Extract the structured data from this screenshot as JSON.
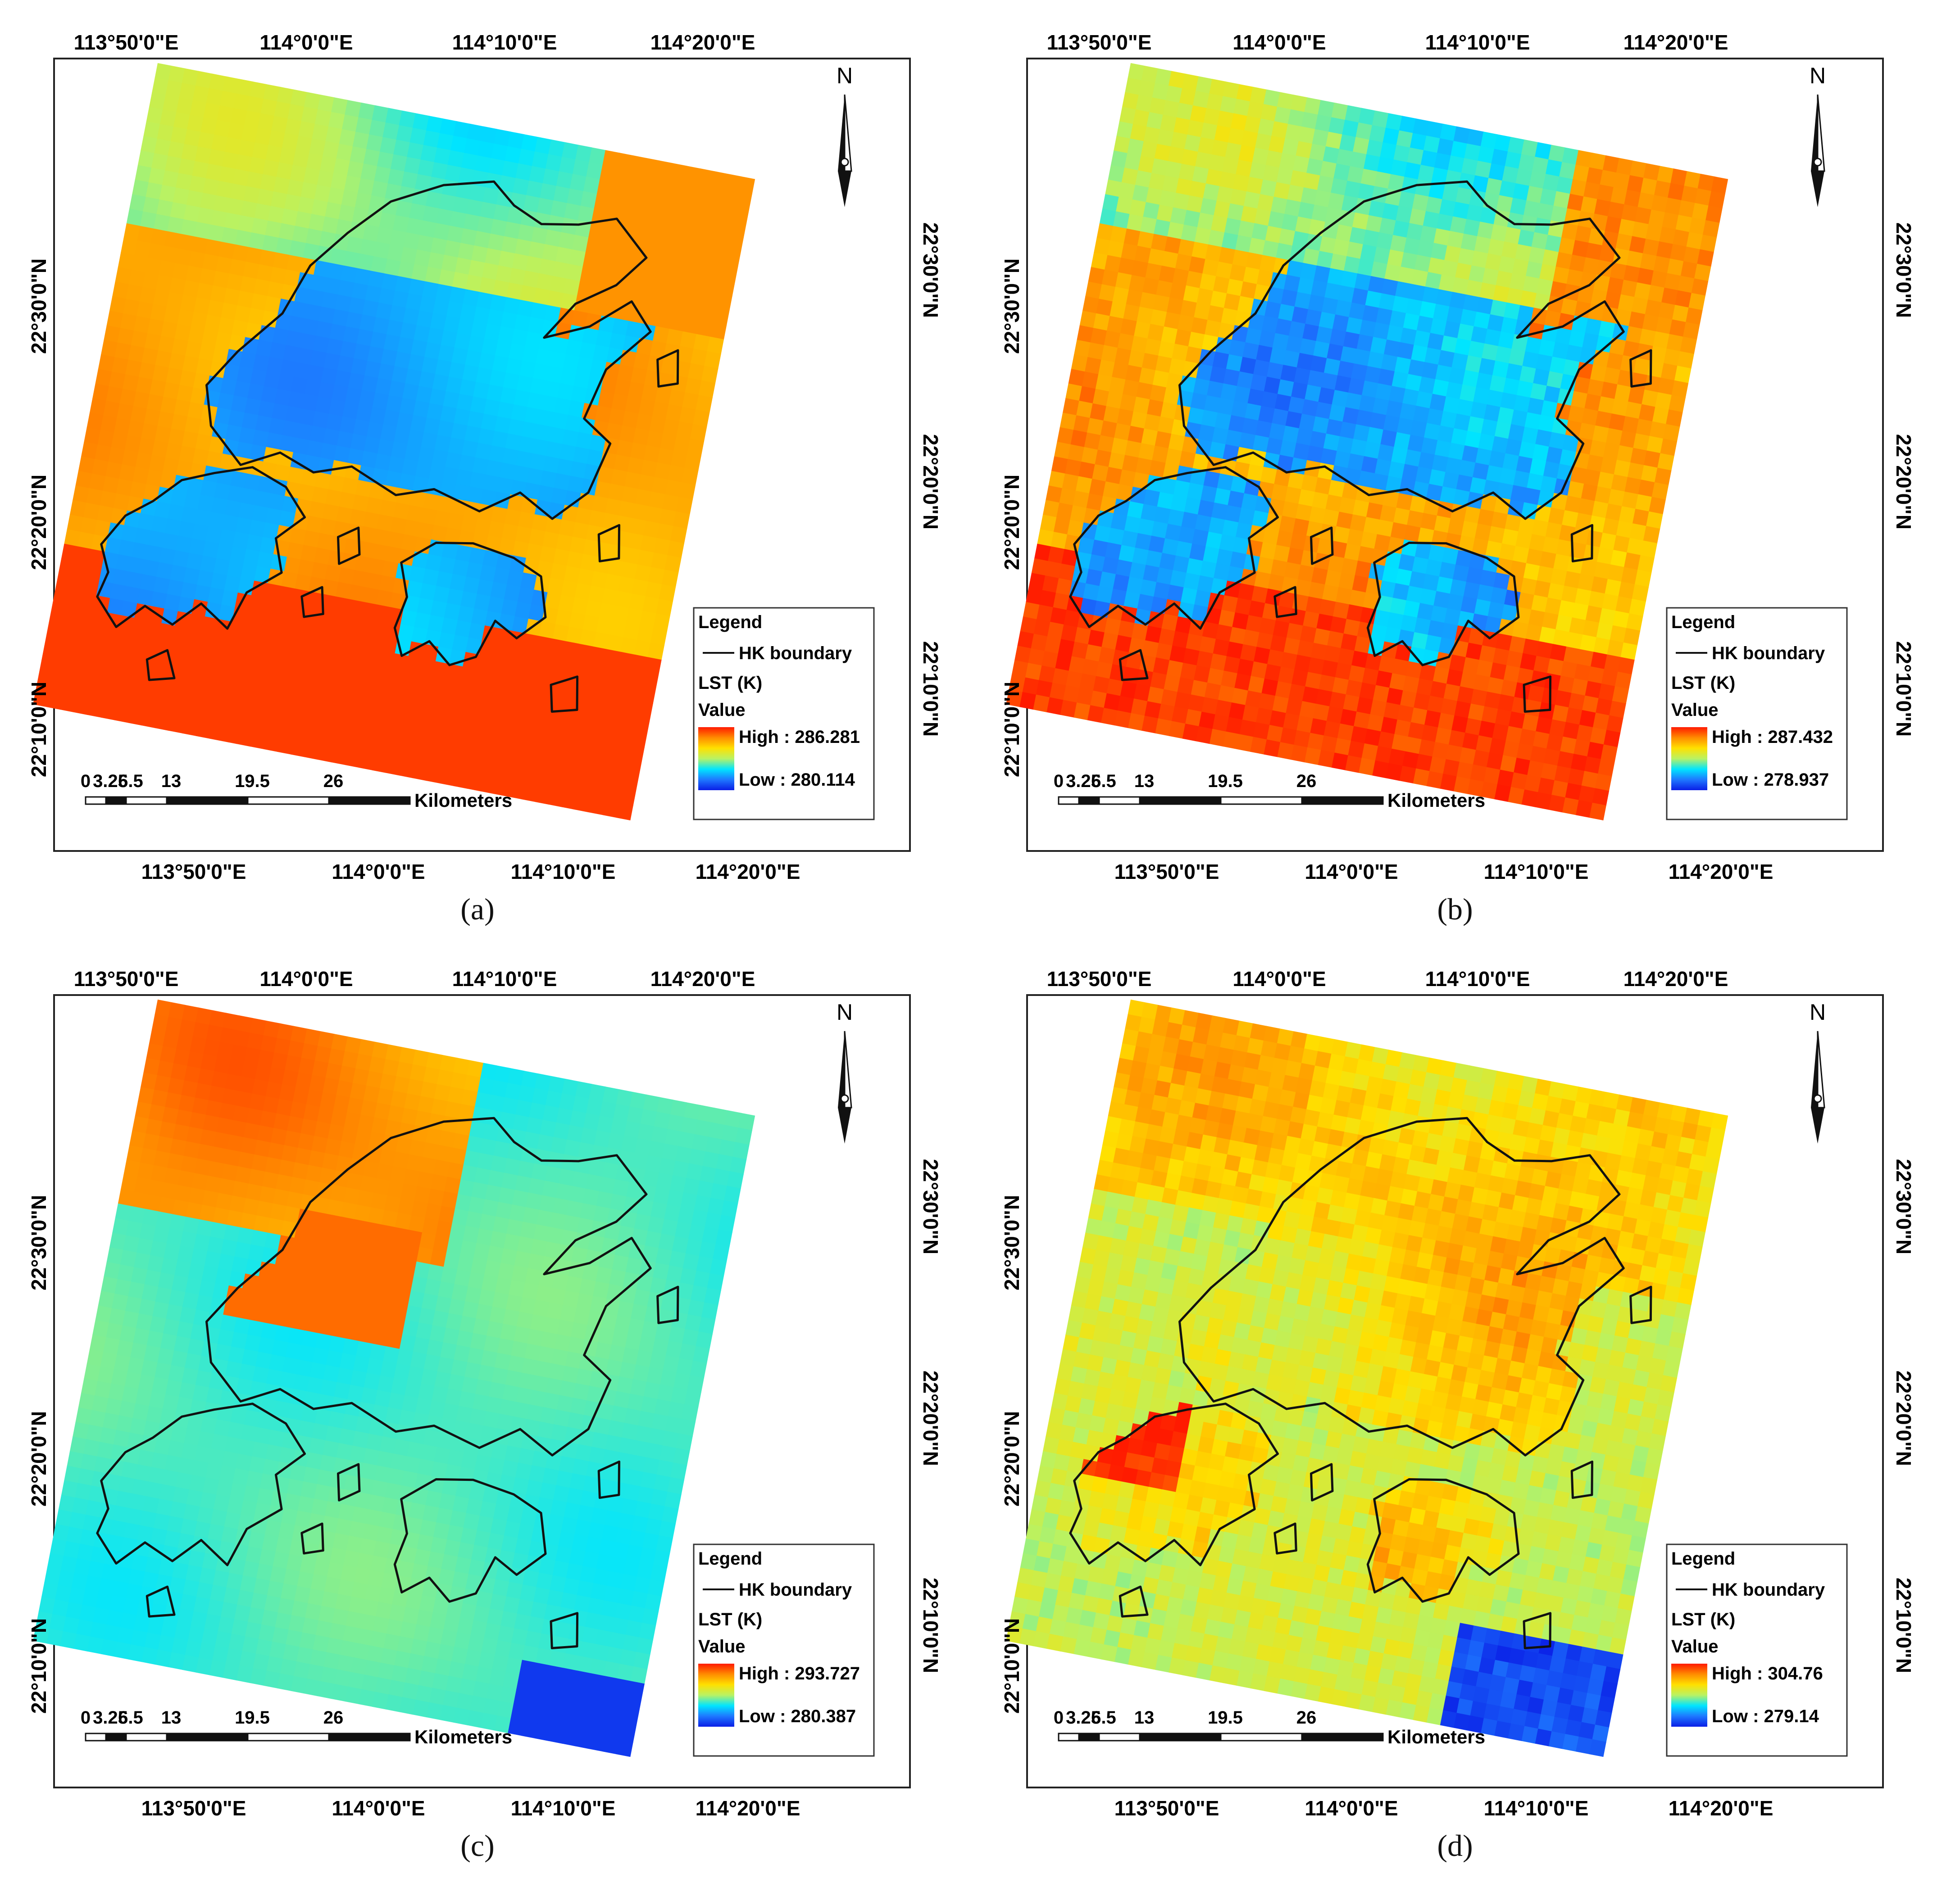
{
  "figure": {
    "panels": [
      {
        "id": "a",
        "caption": "(a)",
        "top_lon_labels": [
          "113°50'0\"E",
          "114°0'0\"E",
          "114°10'0\"E",
          "114°20'0\"E"
        ],
        "bottom_lon_labels": [
          "113°50'0\"E",
          "114°0'0\"E",
          "114°10'0\"E",
          "114°20'0\"E"
        ],
        "left_lat_labels": [
          "22°30'0\"N",
          "22°20'0\"N",
          "22°10'0\"N"
        ],
        "right_lat_labels": [
          "22°30'0\"N",
          "22°20'0\"N",
          "22°10'0\"N"
        ],
        "north_label": "N",
        "legend": {
          "title": "Legend",
          "boundary_label": "HK boundary",
          "layer_label": "LST (K)",
          "value_label": "Value",
          "high_label": "High : 286.281",
          "low_label": "Low : 280.114"
        },
        "scalebar": {
          "ticks": [
            "0",
            "3.25",
            "6.5",
            "13",
            "19.5",
            "26"
          ],
          "unit": "Kilometers"
        },
        "theme": "cool-land"
      },
      {
        "id": "b",
        "caption": "(b)",
        "top_lon_labels": [
          "113°50'0\"E",
          "114°0'0\"E",
          "114°10'0\"E",
          "114°20'0\"E"
        ],
        "bottom_lon_labels": [
          "113°50'0\"E",
          "114°0'0\"E",
          "114°10'0\"E",
          "114°20'0\"E"
        ],
        "left_lat_labels": [
          "22°30'0\"N",
          "22°20'0\"N",
          "22°10'0\"N"
        ],
        "right_lat_labels": [
          "22°30'0\"N",
          "22°20'0\"N",
          "22°10'0\"N"
        ],
        "north_label": "N",
        "legend": {
          "title": "Legend",
          "boundary_label": "HK boundary",
          "layer_label": "LST (K)",
          "value_label": "Value",
          "high_label": "High : 287.432",
          "low_label": "Low : 278.937"
        },
        "scalebar": {
          "ticks": [
            "0",
            "3.25",
            "6.5",
            "13",
            "19.5",
            "26"
          ],
          "unit": "Kilometers"
        },
        "theme": "cool-land-pixel"
      },
      {
        "id": "c",
        "caption": "(c)",
        "top_lon_labels": [
          "113°50'0\"E",
          "114°0'0\"E",
          "114°10'0\"E",
          "114°20'0\"E"
        ],
        "bottom_lon_labels": [
          "113°50'0\"E",
          "114°0'0\"E",
          "114°10'0\"E",
          "114°20'0\"E"
        ],
        "left_lat_labels": [
          "22°30'0\"N",
          "22°20'0\"N",
          "22°10'0\"N"
        ],
        "right_lat_labels": [
          "22°30'0\"N",
          "22°20'0\"N",
          "22°10'0\"N"
        ],
        "north_label": "N",
        "legend": {
          "title": "Legend",
          "boundary_label": "HK boundary",
          "layer_label": "LST (K)",
          "value_label": "Value",
          "high_label": "High : 293.727",
          "low_label": "Low : 280.387"
        },
        "scalebar": {
          "ticks": [
            "0",
            "3.25",
            "6.5",
            "13",
            "19.5",
            "26"
          ],
          "unit": "Kilometers"
        },
        "theme": "warm-north"
      },
      {
        "id": "d",
        "caption": "(d)",
        "top_lon_labels": [
          "113°50'0\"E",
          "114°0'0\"E",
          "114°10'0\"E",
          "114°20'0\"E"
        ],
        "bottom_lon_labels": [
          "113°50'0\"E",
          "114°0'0\"E",
          "114°10'0\"E",
          "114°20'0\"E"
        ],
        "left_lat_labels": [
          "22°30'0\"N",
          "22°20'0\"N",
          "22°10'0\"N"
        ],
        "right_lat_labels": [
          "22°30'0\"N",
          "22°20'0\"N",
          "22°10'0\"N"
        ],
        "north_label": "N",
        "legend": {
          "title": "Legend",
          "boundary_label": "HK boundary",
          "layer_label": "LST (K)",
          "value_label": "Value",
          "high_label": "High : 304.76",
          "low_label": "Low : 279.14"
        },
        "scalebar": {
          "ticks": [
            "0",
            "3.25",
            "6.5",
            "13",
            "19.5",
            "26"
          ],
          "unit": "Kilometers"
        },
        "theme": "hot-urban"
      }
    ],
    "colors": {
      "frame": "#222222",
      "boundary": "#111111",
      "ramp": [
        "#0a1ee6",
        "#1e78ff",
        "#00e5ff",
        "#b8f264",
        "#ffe000",
        "#ff8c00",
        "#ff1a00"
      ]
    }
  }
}
